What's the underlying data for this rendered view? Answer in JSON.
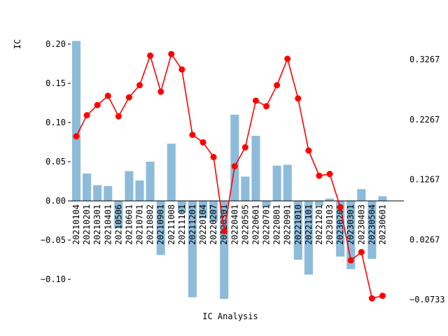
{
  "chart_data": {
    "type": "bar+line",
    "xlabel": "IC Analysis",
    "ylabel": "IC",
    "ylim": [
      -0.125,
      0.205
    ],
    "y2lim": [
      -0.0733,
      0.3667
    ],
    "y_ticks": [
      "0.20",
      "0.15",
      "0.10",
      "0.05",
      "0.00",
      "−0.05",
      "−0.10"
    ],
    "y_tick_values": [
      0.2,
      0.15,
      0.1,
      0.05,
      0.0,
      -0.05,
      -0.1
    ],
    "y2_ticks": [
      "0.3267",
      "0.2267",
      "0.1267",
      "0.0267",
      "−0.0733"
    ],
    "y2_tick_values": [
      0.3267,
      0.2267,
      0.1267,
      0.0267,
      -0.0733
    ],
    "grid": false,
    "colors": {
      "bar": "#8dbcdb",
      "line": "#ff0000"
    },
    "categories": [
      "20210104",
      "20210201",
      "20210301",
      "20210401",
      "20210506",
      "20210601",
      "20210701",
      "20210802",
      "20210901",
      "20211008",
      "20211101",
      "20211201",
      "20220104",
      "20220207",
      "20220301",
      "20220401",
      "20220505",
      "20220601",
      "20220701",
      "20220801",
      "20220901",
      "20221010",
      "20221101",
      "20221201",
      "20230103",
      "20230201",
      "20230301",
      "20230403",
      "20230504",
      "20230601"
    ],
    "series": [
      {
        "kind": "bar",
        "values": [
          0.204,
          0.035,
          0.02,
          0.019,
          -0.035,
          0.038,
          0.026,
          0.05,
          -0.069,
          0.073,
          -0.015,
          -0.123,
          -0.022,
          -0.027,
          -0.125,
          0.11,
          0.031,
          0.083,
          -0.007,
          0.045,
          0.046,
          -0.075,
          -0.094,
          -0.006,
          0.003,
          -0.071,
          -0.087,
          0.015,
          -0.074,
          0.006
        ]
      },
      {
        "kind": "line",
        "values": [
          0.1987,
          0.2338,
          0.2508,
          0.2662,
          0.232,
          0.2637,
          0.2839,
          0.3331,
          0.273,
          0.3358,
          0.3101,
          0.2012,
          0.1887,
          0.1641,
          0.0407,
          0.1488,
          0.1803,
          0.2581,
          0.2488,
          0.2839,
          0.3278,
          0.2618,
          0.175,
          0.133,
          0.136,
          0.0805,
          -0.0079,
          0.0058,
          -0.0712,
          -0.067
        ]
      }
    ]
  }
}
